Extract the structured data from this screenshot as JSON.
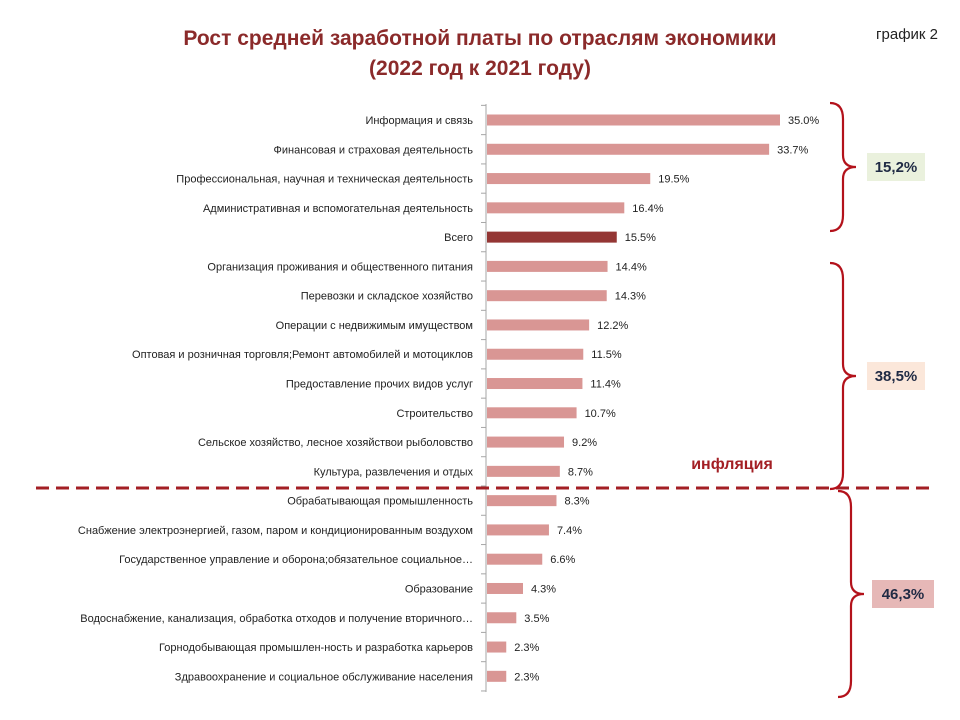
{
  "header": {
    "title_line1": "Рост средней заработной платы по отраслям экономики",
    "title_line2": "(2022 год к 2021 году)",
    "chart_label": "график 2"
  },
  "annotations": {
    "inflation_label": "инфляция",
    "groups": [
      {
        "label": "15,2%",
        "bg": "#eaf1dd"
      },
      {
        "label": "38,5%",
        "bg": "#fbe7da"
      },
      {
        "label": "46,3%",
        "bg": "#e6b8b7"
      }
    ]
  },
  "colors": {
    "bar": "#d99694",
    "highlight": "#943634",
    "bracket": "#b3121b",
    "dashed_line": "#a31f24",
    "axis": "#a6a6a6"
  },
  "chart_data": {
    "type": "bar",
    "orientation": "horizontal",
    "title": "Рост средней заработной платы по отраслям экономики (2022 год к 2021 году)",
    "categories": [
      "Информация и связь",
      "Финансовая и страховая деятельность",
      "Профессиональная, научная и техническая деятельность",
      "Административная и вспомогательная деятельность",
      "Всего",
      "Организация проживания и общественного питания",
      "Перевозки и складское хозяйство",
      "Операции с недвижимым имуществом",
      "Оптовая и розничная торговля;Ремонт автомобилей и мотоциклов",
      "Предоставление прочих видов услуг",
      "Строительство",
      "Сельское хозяйство, лесное хозяйствои рыболовство",
      "Культура, развлечения и отдых",
      "Обрабатывающая промышленность",
      "Снабжение электроэнергией, газом, паром и кондиционированным воздухом",
      "Государственное управление и оборона;обязательное социальное…",
      "Образование",
      "Водоснабжение, канализация, обработка отходов и получение вторичного…",
      "Горнодобывающая промышлен-ность и разработка карьеров",
      "Здравоохранение и социальное обслуживание населения"
    ],
    "values": [
      35.0,
      33.7,
      19.5,
      16.4,
      15.5,
      14.4,
      14.3,
      12.2,
      11.5,
      11.4,
      10.7,
      9.2,
      8.7,
      8.3,
      7.4,
      6.6,
      4.3,
      3.5,
      2.3,
      2.3
    ],
    "value_labels": [
      "35.0%",
      "33.7%",
      "19.5%",
      "16.4%",
      "15.5%",
      "14.4%",
      "14.3%",
      "12.2%",
      "11.5%",
      "11.4%",
      "10.7%",
      "9.2%",
      "8.7%",
      "8.3%",
      "7.4%",
      "6.6%",
      "4.3%",
      "3.5%",
      "2.3%",
      "2.3%"
    ],
    "highlight_category": "Всего",
    "xlim": [
      0,
      35
    ],
    "grid": false,
    "legend": "none"
  }
}
